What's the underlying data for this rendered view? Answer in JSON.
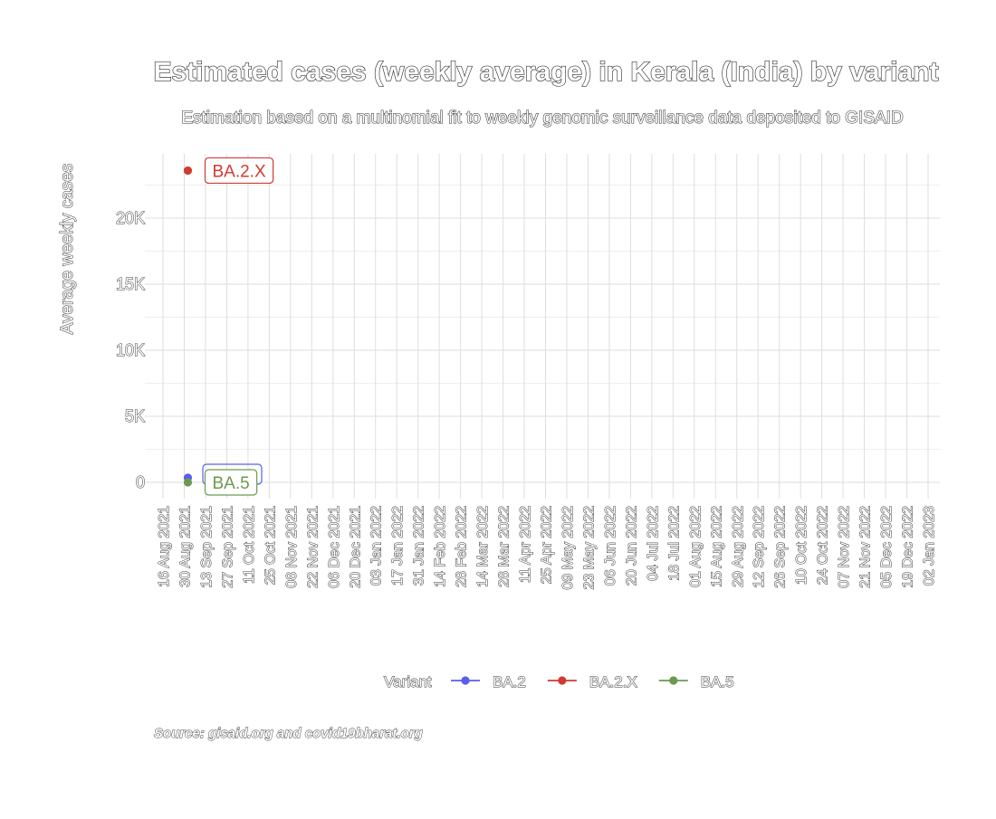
{
  "chart_data": {
    "type": "scatter",
    "title": "Estimated cases (weekly average) in Kerala (India) by variant",
    "subtitle": "Estimation based on a multinomial fit to weekly genomic surveillance data deposited to GISAID",
    "ylabel": "Average weekly cases",
    "xlabel": "",
    "caption": "Source: gisaid.org and covid19bharat.org",
    "ylim": [
      -1250,
      25000
    ],
    "yticks": [
      0,
      5000,
      10000,
      15000,
      20000
    ],
    "ytick_labels": [
      "0",
      "5K",
      "10K",
      "15K",
      "20K"
    ],
    "x_categories": [
      "16 Aug 2021",
      "30 Aug 2021",
      "13 Sep 2021",
      "27 Sep 2021",
      "11 Oct 2021",
      "25 Oct 2021",
      "08 Nov 2021",
      "22 Nov 2021",
      "06 Dec 2021",
      "20 Dec 2021",
      "03 Jan 2022",
      "17 Jan 2022",
      "31 Jan 2022",
      "14 Feb 2022",
      "28 Feb 2022",
      "14 Mar 2022",
      "28 Mar 2022",
      "11 Apr 2022",
      "25 Apr 2022",
      "09 May 2022",
      "23 May 2022",
      "06 Jun 2022",
      "20 Jun 2022",
      "04 Jul 2022",
      "18 Jul 2022",
      "01 Aug 2022",
      "15 Aug 2022",
      "29 Aug 2022",
      "12 Sep 2022",
      "26 Sep 2022",
      "10 Oct 2022",
      "24 Oct 2022",
      "07 Nov 2022",
      "21 Nov 2022",
      "05 Dec 2022",
      "19 Dec 2022",
      "02 Jan 2023"
    ],
    "grid": true,
    "legend": {
      "title": "Variant",
      "position": "bottom"
    },
    "series": [
      {
        "name": "BA.2",
        "color": "#5a5df0",
        "points": [
          {
            "x": "30 Aug 2021",
            "y": 350
          }
        ]
      },
      {
        "name": "BA.2.X",
        "color": "#d13a2f",
        "points": [
          {
            "x": "30 Aug 2021",
            "y": 23600
          }
        ],
        "label": "BA.2.X"
      },
      {
        "name": "BA.5",
        "color": "#6a9a4f",
        "points": [
          {
            "x": "30 Aug 2021",
            "y": 0
          }
        ],
        "label": "BA.5"
      }
    ]
  }
}
